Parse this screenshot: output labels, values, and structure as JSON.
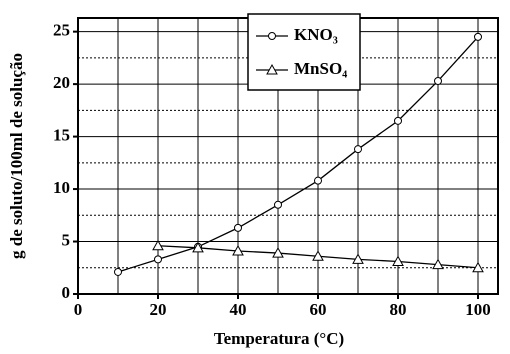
{
  "chart_data": {
    "type": "line",
    "xlabel": "Temperatura (°C)",
    "ylabel": "g de soluto/100ml de solução",
    "xlim": [
      0,
      105
    ],
    "ylim": [
      0,
      26.3
    ],
    "xticks": [
      0,
      20,
      40,
      60,
      80,
      100
    ],
    "minor_xticks": [
      10,
      30,
      50,
      70,
      90
    ],
    "yticks": [
      0,
      5,
      10,
      15,
      20,
      25
    ],
    "minor_yticks": [
      2.5,
      7.5,
      12.5,
      17.5,
      22.5
    ],
    "grid": true,
    "legend": "top",
    "series": [
      {
        "name": "KNO₃",
        "color": "#000000",
        "marker": "circle",
        "x": [
          10,
          20,
          30,
          40,
          50,
          60,
          70,
          80,
          90,
          100
        ],
        "values": [
          2.1,
          3.3,
          4.5,
          6.3,
          8.5,
          10.8,
          13.8,
          16.5,
          20.3,
          24.5
        ]
      },
      {
        "name": "MnSO₄",
        "color": "#000000",
        "marker": "triangle",
        "x": [
          20,
          30,
          40,
          50,
          60,
          70,
          80,
          90,
          100
        ],
        "values": [
          4.6,
          4.4,
          4.1,
          3.9,
          3.6,
          3.3,
          3.1,
          2.8,
          2.5
        ]
      }
    ]
  }
}
